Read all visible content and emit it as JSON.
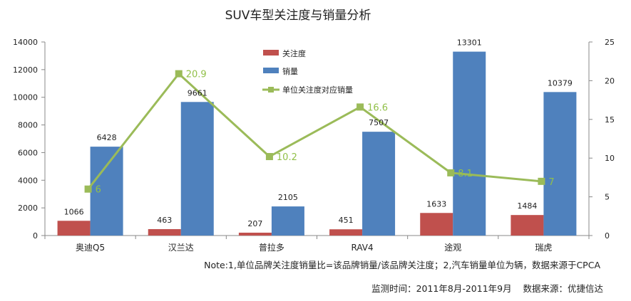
{
  "chart_data": {
    "type": "bar",
    "title": "SUV车型关注度与销量分析",
    "categories": [
      "奥迪Q5",
      "汉兰达",
      "普拉多",
      "RAV4",
      "途观",
      "瑞虎"
    ],
    "series": [
      {
        "name": "关注度",
        "type": "bar",
        "axis": "left",
        "color": "#c0504d",
        "values": [
          1066,
          463,
          207,
          451,
          1633,
          1484
        ]
      },
      {
        "name": "销量",
        "type": "bar",
        "axis": "left",
        "color": "#4f81bd",
        "values": [
          6428,
          9661,
          2105,
          7507,
          13301,
          10379
        ]
      },
      {
        "name": "单位关注度对应销量",
        "type": "line",
        "axis": "right",
        "color": "#9bbb59",
        "values": [
          6,
          20.9,
          10.2,
          16.6,
          8.1,
          7
        ]
      }
    ],
    "y_left": {
      "min": 0,
      "max": 14000,
      "step": 2000
    },
    "y_right": {
      "min": 0,
      "max": 25,
      "step": 5
    },
    "legend_position": "top-center",
    "grid": false
  },
  "notes": {
    "note_line": "Note:1,单位品牌关注度销量比=该品牌销量/该品牌关注度；2,汽车销量单位为辆，数据来源于CPCA",
    "monitor_line": "监测时间：2011年8月-2011年9月    数据来源：优捷信达"
  }
}
